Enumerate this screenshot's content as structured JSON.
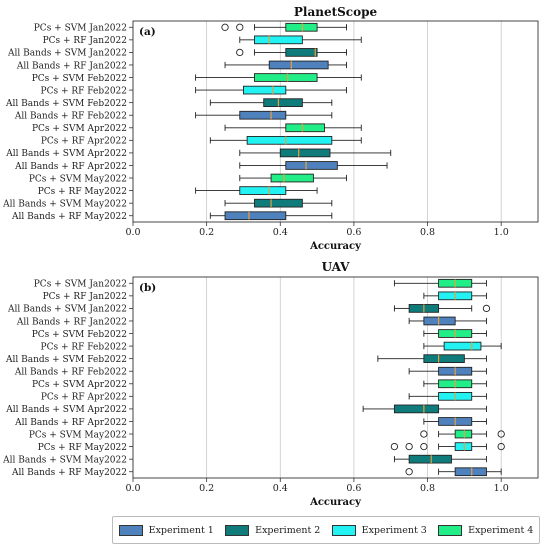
{
  "chart_data": [
    {
      "type": "boxplot",
      "title": "PlanetScope",
      "panel_label": "(a)",
      "xlabel": "Accuracy",
      "xlim": [
        0.0,
        1.1
      ],
      "xticks": [
        "0.0",
        "0.2",
        "0.4",
        "0.6",
        "0.8",
        "1.0"
      ],
      "grid": "vertical",
      "boxes": [
        {
          "label": "PCs + SVM  Jan2022",
          "experiment": 4,
          "whislo": 0.33,
          "q1": 0.415,
          "med": 0.46,
          "q3": 0.5,
          "whishi": 0.58,
          "fliers": [
            0.25,
            0.29
          ]
        },
        {
          "label": "PCs + RF  Jan2022",
          "experiment": 3,
          "whislo": 0.29,
          "q1": 0.33,
          "med": 0.37,
          "q3": 0.46,
          "whishi": 0.62,
          "fliers": []
        },
        {
          "label": "All Bands + SVM  Jan2022",
          "experiment": 2,
          "whislo": 0.33,
          "q1": 0.415,
          "med": 0.495,
          "q3": 0.5,
          "whishi": 0.58,
          "fliers": [
            0.29
          ]
        },
        {
          "label": "All Bands + RF  Jan2022",
          "experiment": 1,
          "whislo": 0.25,
          "q1": 0.37,
          "med": 0.43,
          "q3": 0.53,
          "whishi": 0.58,
          "fliers": []
        },
        {
          "label": "PCs + SVM  Feb2022",
          "experiment": 4,
          "whislo": 0.17,
          "q1": 0.33,
          "med": 0.42,
          "q3": 0.5,
          "whishi": 0.62,
          "fliers": []
        },
        {
          "label": "PCs + RF  Feb2022",
          "experiment": 3,
          "whislo": 0.17,
          "q1": 0.3,
          "med": 0.38,
          "q3": 0.415,
          "whishi": 0.58,
          "fliers": []
        },
        {
          "label": "All Bands + SVM  Feb2022",
          "experiment": 2,
          "whislo": 0.21,
          "q1": 0.355,
          "med": 0.395,
          "q3": 0.46,
          "whishi": 0.54,
          "fliers": []
        },
        {
          "label": "All Bands + RF  Feb2022",
          "experiment": 1,
          "whislo": 0.17,
          "q1": 0.29,
          "med": 0.375,
          "q3": 0.415,
          "whishi": 0.54,
          "fliers": []
        },
        {
          "label": "PCs + SVM  Apr2022",
          "experiment": 4,
          "whislo": 0.25,
          "q1": 0.415,
          "med": 0.46,
          "q3": 0.52,
          "whishi": 0.62,
          "fliers": []
        },
        {
          "label": "PCs + RF  Apr2022",
          "experiment": 3,
          "whislo": 0.21,
          "q1": 0.31,
          "med": 0.415,
          "q3": 0.54,
          "whishi": 0.62,
          "fliers": []
        },
        {
          "label": "All Bands + SVM  Apr2022",
          "experiment": 2,
          "whislo": 0.29,
          "q1": 0.4,
          "med": 0.45,
          "q3": 0.535,
          "whishi": 0.7,
          "fliers": []
        },
        {
          "label": "All Bands + RF  Apr2022",
          "experiment": 1,
          "whislo": 0.29,
          "q1": 0.415,
          "med": 0.47,
          "q3": 0.555,
          "whishi": 0.69,
          "fliers": []
        },
        {
          "label": "PCs + SVM  May2022",
          "experiment": 4,
          "whislo": 0.29,
          "q1": 0.375,
          "med": 0.41,
          "q3": 0.49,
          "whishi": 0.58,
          "fliers": []
        },
        {
          "label": "PCs + RF  May2022",
          "experiment": 3,
          "whislo": 0.17,
          "q1": 0.29,
          "med": 0.37,
          "q3": 0.415,
          "whishi": 0.5,
          "fliers": []
        },
        {
          "label": "All Bands + SVM  May2022",
          "experiment": 2,
          "whislo": 0.25,
          "q1": 0.33,
          "med": 0.375,
          "q3": 0.46,
          "whishi": 0.54,
          "fliers": []
        },
        {
          "label": "All Bands + RF  May2022",
          "experiment": 1,
          "whislo": 0.21,
          "q1": 0.25,
          "med": 0.315,
          "q3": 0.415,
          "whishi": 0.54,
          "fliers": []
        }
      ]
    },
    {
      "type": "boxplot",
      "title": "UAV",
      "panel_label": "(b)",
      "xlabel": "Accuracy",
      "xlim": [
        0.0,
        1.1
      ],
      "xticks": [
        "0.0",
        "0.2",
        "0.4",
        "0.6",
        "0.8",
        "1.0"
      ],
      "grid": "vertical",
      "boxes": [
        {
          "label": "PCs + SVM  Jan2022",
          "experiment": 4,
          "whislo": 0.71,
          "q1": 0.83,
          "med": 0.875,
          "q3": 0.92,
          "whishi": 0.96,
          "fliers": []
        },
        {
          "label": "PCs + RF  Jan2022",
          "experiment": 3,
          "whislo": 0.79,
          "q1": 0.83,
          "med": 0.875,
          "q3": 0.92,
          "whishi": 0.96,
          "fliers": []
        },
        {
          "label": "All Bands + SVM  Jan2022",
          "experiment": 2,
          "whislo": 0.71,
          "q1": 0.75,
          "med": 0.79,
          "q3": 0.83,
          "whishi": 0.92,
          "fliers": [
            0.96
          ]
        },
        {
          "label": "All Bands + RF  Jan2022",
          "experiment": 1,
          "whislo": 0.75,
          "q1": 0.79,
          "med": 0.83,
          "q3": 0.875,
          "whishi": 0.96,
          "fliers": []
        },
        {
          "label": "PCs + SVM  Feb2022",
          "experiment": 4,
          "whislo": 0.79,
          "q1": 0.83,
          "med": 0.875,
          "q3": 0.92,
          "whishi": 0.96,
          "fliers": []
        },
        {
          "label": "PCs + RF  Feb2022",
          "experiment": 3,
          "whislo": 0.79,
          "q1": 0.845,
          "med": 0.92,
          "q3": 0.945,
          "whishi": 1.0,
          "fliers": []
        },
        {
          "label": "All Bands + SVM  Feb2022",
          "experiment": 2,
          "whislo": 0.665,
          "q1": 0.79,
          "med": 0.83,
          "q3": 0.9,
          "whishi": 0.96,
          "fliers": []
        },
        {
          "label": "All Bands + RF  Feb2022",
          "experiment": 1,
          "whislo": 0.75,
          "q1": 0.83,
          "med": 0.875,
          "q3": 0.92,
          "whishi": 0.96,
          "fliers": []
        },
        {
          "label": "PCs + SVM  Apr2022",
          "experiment": 4,
          "whislo": 0.79,
          "q1": 0.83,
          "med": 0.875,
          "q3": 0.92,
          "whishi": 0.96,
          "fliers": []
        },
        {
          "label": "PCs + RF  Apr2022",
          "experiment": 3,
          "whislo": 0.75,
          "q1": 0.83,
          "med": 0.875,
          "q3": 0.92,
          "whishi": 0.96,
          "fliers": []
        },
        {
          "label": "All Bands + SVM  Apr2022",
          "experiment": 2,
          "whislo": 0.625,
          "q1": 0.71,
          "med": 0.79,
          "q3": 0.83,
          "whishi": 0.96,
          "fliers": []
        },
        {
          "label": "All Bands + RF  Apr2022",
          "experiment": 1,
          "whislo": 0.79,
          "q1": 0.83,
          "med": 0.875,
          "q3": 0.92,
          "whishi": 0.96,
          "fliers": []
        },
        {
          "label": "PCs + SVM  May2022",
          "experiment": 4,
          "whislo": 0.83,
          "q1": 0.875,
          "med": 0.9,
          "q3": 0.92,
          "whishi": 0.96,
          "fliers": [
            0.79,
            1.0
          ]
        },
        {
          "label": "PCs + RF  May2022",
          "experiment": 3,
          "whislo": 0.83,
          "q1": 0.875,
          "med": 0.9,
          "q3": 0.92,
          "whishi": 0.96,
          "fliers": [
            0.71,
            0.75,
            0.79,
            1.0
          ]
        },
        {
          "label": "All Bands + SVM  May2022",
          "experiment": 2,
          "whislo": 0.71,
          "q1": 0.75,
          "med": 0.81,
          "q3": 0.865,
          "whishi": 0.96,
          "fliers": []
        },
        {
          "label": "All Bands + RF  May2022",
          "experiment": 1,
          "whislo": 0.83,
          "q1": 0.875,
          "med": 0.92,
          "q3": 0.96,
          "whishi": 1.0,
          "fliers": [
            0.75
          ]
        }
      ]
    }
  ],
  "legend": [
    {
      "label": "Experiment 1",
      "color": "#4f81bd"
    },
    {
      "label": "Experiment 2",
      "color": "#0f7b7b"
    },
    {
      "label": "Experiment 3",
      "color": "#22f2f2"
    },
    {
      "label": "Experiment 4",
      "color": "#22ee88"
    }
  ],
  "median_color": "#e8a03c"
}
